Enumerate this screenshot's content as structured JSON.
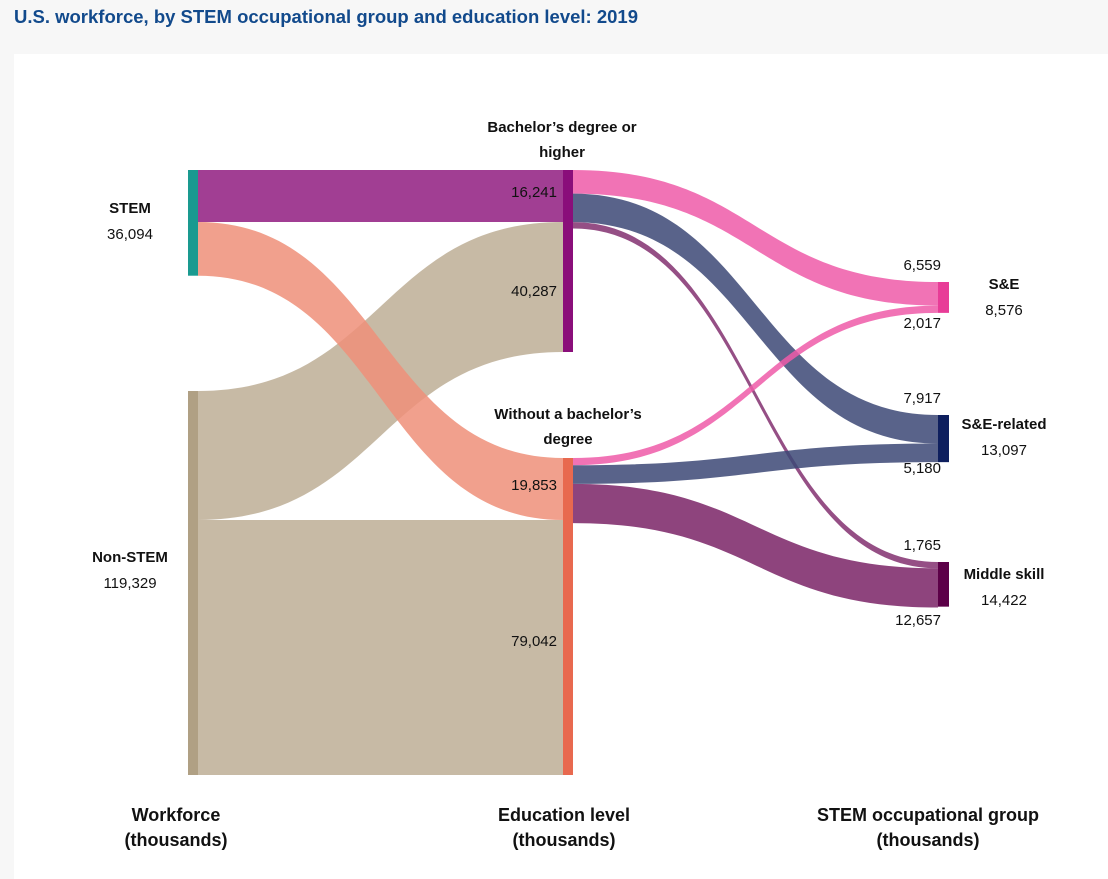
{
  "page": {
    "title": "U.S. workforce, by STEM occupational group and education level: 2019"
  },
  "chart_data": {
    "type": "sankey",
    "units": "thousands",
    "stages": [
      {
        "id": "workforce",
        "label_line1": "Workforce",
        "label_line2": "(thousands)"
      },
      {
        "id": "education",
        "label_line1": "Education level",
        "label_line2": "(thousands)"
      },
      {
        "id": "occupation",
        "label_line1": "STEM occupational group",
        "label_line2": "(thousands)"
      }
    ],
    "nodes": {
      "stem": {
        "label": "STEM",
        "value": 36094,
        "value_label": "36,094",
        "color": "#1a9a90"
      },
      "nonstem": {
        "label": "Non-STEM",
        "value": 119329,
        "value_label": "119,329",
        "color": "#b0a084"
      },
      "bach": {
        "label_line1": "Bachelor’s degree or",
        "label_line2": "higher",
        "color": "#8a0e7a"
      },
      "nobach": {
        "label_line1": "Without a bachelor’s",
        "label_line2": "degree",
        "color": "#e8694f"
      },
      "se": {
        "label": "S&E",
        "value": 8576,
        "value_label": "8,576",
        "color": "#e83c97"
      },
      "serelated": {
        "label": "S&E-related",
        "value": 13097,
        "value_label": "13,097",
        "color": "#0e1f5e"
      },
      "middle": {
        "label": "Middle skill",
        "value": 14422,
        "value_label": "14,422",
        "color": "#5c0048"
      }
    },
    "links": [
      {
        "source": "stem",
        "target": "bach",
        "value": 16241,
        "label": "16,241",
        "color": "#a13e93"
      },
      {
        "source": "stem",
        "target": "nobach",
        "value": 19853,
        "label": "19,853",
        "color": "#ef8f79"
      },
      {
        "source": "nonstem",
        "target": "bach",
        "value": 40287,
        "label": "40,287",
        "color": "#bdae95"
      },
      {
        "source": "nonstem",
        "target": "nobach",
        "value": 79042,
        "label": "79,042",
        "color": "#bdae95"
      },
      {
        "source": "bach",
        "target": "se",
        "value": 6559,
        "label": "6,559",
        "color": "#ef5aa8"
      },
      {
        "source": "bach",
        "target": "serelated",
        "value": 7917,
        "label": "7,917",
        "color": "#3c4876"
      },
      {
        "source": "bach",
        "target": "middle",
        "value": 1765,
        "label": "1,765",
        "color": "#7a2366"
      },
      {
        "source": "nobach",
        "target": "se",
        "value": 2017,
        "label": "2,017",
        "color": "#ef5aa8"
      },
      {
        "source": "nobach",
        "target": "serelated",
        "value": 5180,
        "label": "5,180",
        "color": "#3c4876"
      },
      {
        "source": "nobach",
        "target": "middle",
        "value": 12657,
        "label": "12,657",
        "color": "#7a2366"
      }
    ]
  }
}
